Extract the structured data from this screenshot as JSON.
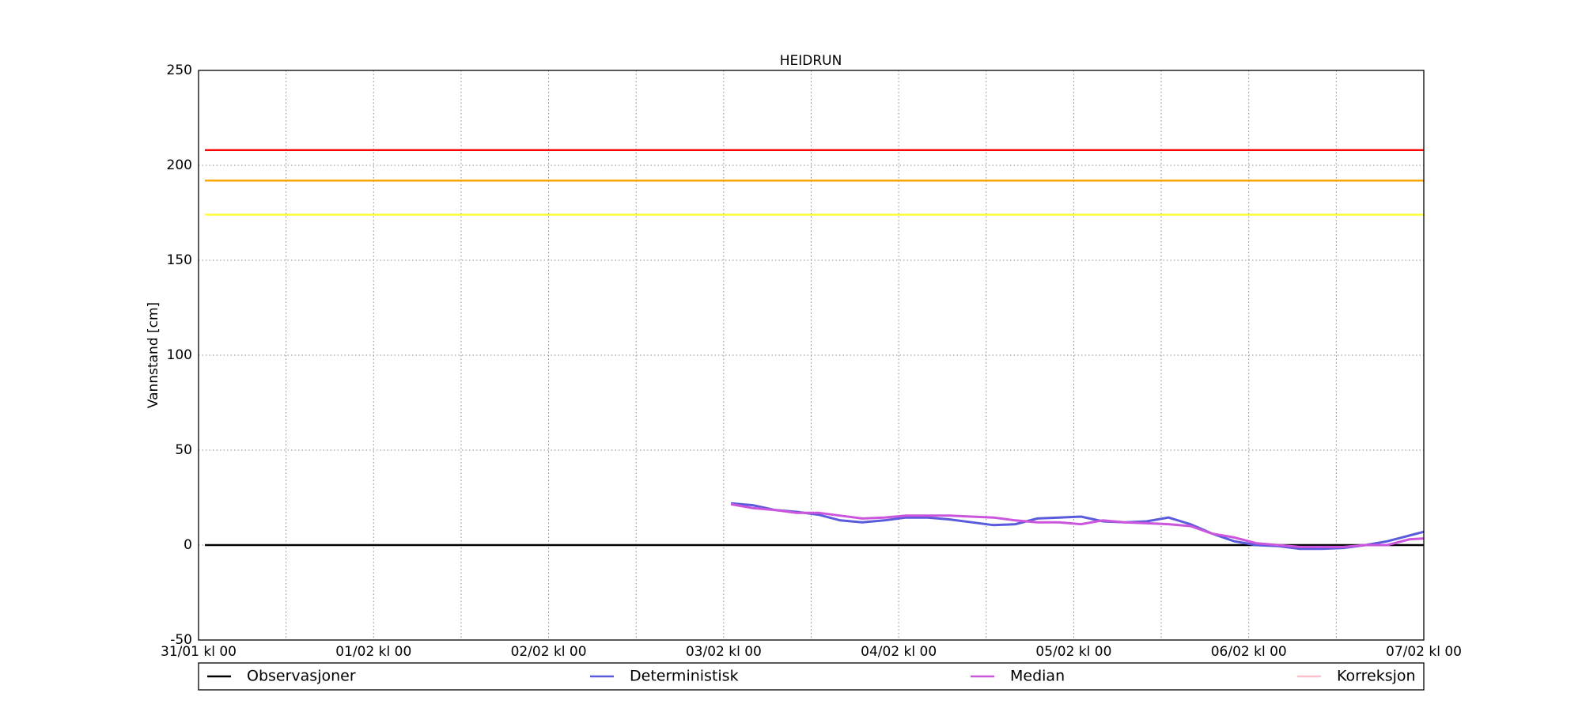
{
  "chart_data": {
    "type": "line",
    "title": "HEIDRUN",
    "y_label": "Vannstand [cm]",
    "xlim": [
      0,
      168
    ],
    "xticks": [
      {
        "value": 0,
        "label": "31/01 kl 00"
      },
      {
        "value": 24,
        "label": "01/02 kl 00"
      },
      {
        "value": 48,
        "label": "02/02 kl 00"
      },
      {
        "value": 72,
        "label": "03/02 kl 00"
      },
      {
        "value": 96,
        "label": "04/02 kl 00"
      },
      {
        "value": 120,
        "label": "05/02 kl 00"
      },
      {
        "value": 144,
        "label": "06/02 kl 00"
      },
      {
        "value": 168,
        "label": "07/02 kl 00"
      }
    ],
    "x_minor_grid": [
      12,
      36,
      60,
      84,
      108,
      132,
      156
    ],
    "ylim": [
      -50,
      250
    ],
    "yticks": [
      -50,
      0,
      50,
      100,
      150,
      200,
      250
    ],
    "grid": true,
    "hlines": [
      {
        "value": 208,
        "color": "#ff0000"
      },
      {
        "value": 192,
        "color": "#ffa500"
      },
      {
        "value": 174,
        "color": "#ffff33"
      },
      {
        "value": 0,
        "color": "#000000"
      }
    ],
    "series": [
      {
        "name": "Observasjoner",
        "color": "#000000",
        "x": [],
        "values": []
      },
      {
        "name": "Deterministisk",
        "color": "#5a5adc",
        "x": [
          73,
          76,
          79,
          82,
          85,
          88,
          91,
          94,
          97,
          100,
          103,
          106,
          109,
          112,
          115,
          118,
          121,
          124,
          127,
          130,
          133,
          136,
          139,
          142,
          145,
          148,
          151,
          154,
          157,
          160,
          163,
          166,
          168
        ],
        "values": [
          22,
          21,
          18.5,
          17.5,
          16,
          13,
          12,
          13,
          14.5,
          14.5,
          13.5,
          12,
          10.5,
          11,
          14,
          14.5,
          15,
          12.5,
          12,
          12.5,
          14.5,
          11,
          6,
          2,
          0,
          -0.5,
          -2,
          -2,
          -1.5,
          0,
          2,
          5,
          7
        ]
      },
      {
        "name": "Median",
        "color": "#cc55dd",
        "x": [
          73,
          76,
          79,
          82,
          85,
          88,
          91,
          94,
          97,
          100,
          103,
          106,
          109,
          112,
          115,
          118,
          121,
          124,
          127,
          130,
          133,
          136,
          139,
          142,
          145,
          148,
          151,
          154,
          157,
          160,
          163,
          166,
          168
        ],
        "values": [
          21.5,
          19.5,
          18.5,
          17,
          17,
          15.5,
          14,
          14.5,
          15.5,
          15.5,
          15.5,
          15,
          14.5,
          13,
          12,
          12,
          11,
          13,
          12,
          11.5,
          11,
          10,
          6,
          4,
          1,
          0,
          -1,
          -1,
          -1,
          0,
          0,
          3,
          3.5
        ]
      },
      {
        "name": "Korreksjon",
        "color": "#ffc0cb",
        "x": [],
        "values": []
      }
    ]
  }
}
